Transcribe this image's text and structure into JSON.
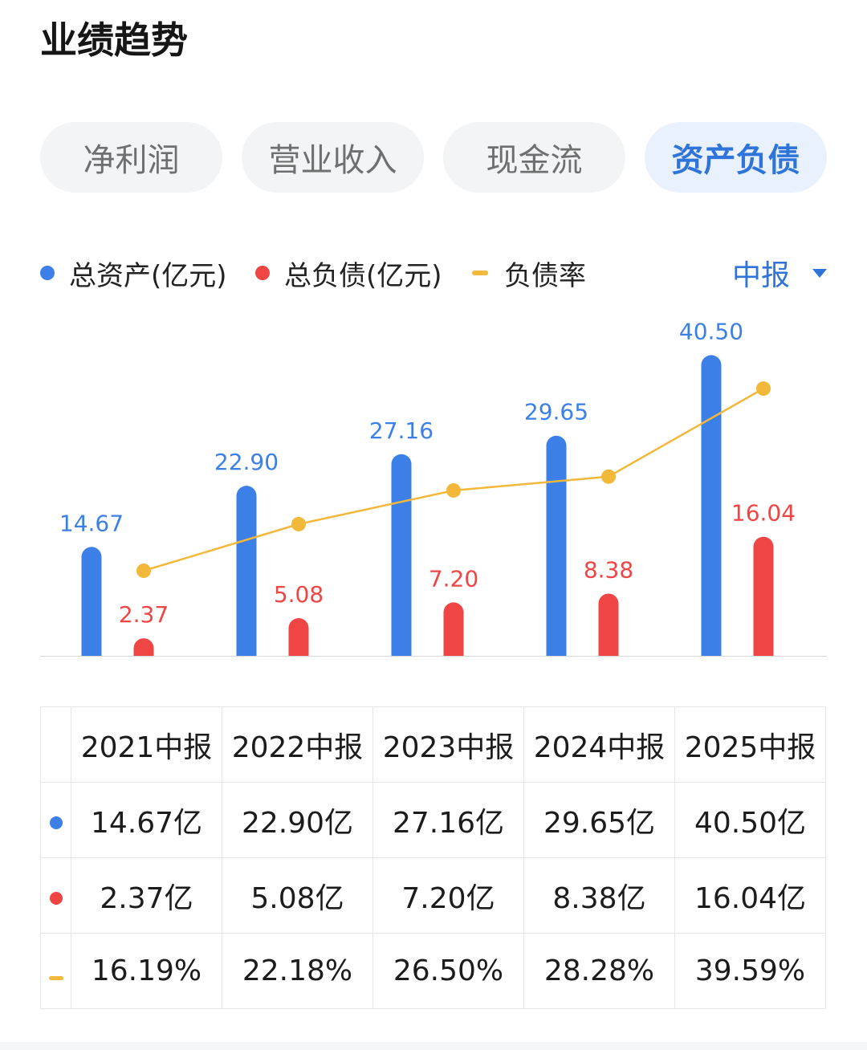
{
  "page_title": "业绩趋势",
  "tabs": [
    {
      "label": "净利润",
      "active": false
    },
    {
      "label": "营业收入",
      "active": false
    },
    {
      "label": "现金流",
      "active": false
    },
    {
      "label": "资产负债",
      "active": true
    }
  ],
  "period_selector": "中报",
  "colors": {
    "assets": "#3c7fe6",
    "liabilities": "#ef4545",
    "ratio": "#f2b83a",
    "accent": "#2f74d8"
  },
  "chart_data": {
    "type": "bar",
    "categories": [
      "2021中报",
      "2022中报",
      "2023中报",
      "2024中报",
      "2025中报"
    ],
    "series": [
      {
        "name": "总资产(亿元)",
        "kind": "bar",
        "values": [
          14.67,
          22.9,
          27.16,
          29.65,
          40.5
        ],
        "labels": [
          "14.67",
          "22.90",
          "27.16",
          "29.65",
          "40.50"
        ]
      },
      {
        "name": "总负债(亿元)",
        "kind": "bar",
        "values": [
          2.37,
          5.08,
          7.2,
          8.38,
          16.04
        ],
        "labels": [
          "2.37",
          "5.08",
          "7.20",
          "8.38",
          "16.04"
        ]
      },
      {
        "name": "负债率",
        "kind": "line",
        "unit": "%",
        "values": [
          16.19,
          22.18,
          26.5,
          28.28,
          39.59
        ]
      }
    ],
    "legend_position": "top-left",
    "grid": false
  },
  "table": {
    "headers": [
      "2021中报",
      "2022中报",
      "2023中报",
      "2024中报",
      "2025中报"
    ],
    "rows": [
      {
        "marker": "assets",
        "cells": [
          "14.67亿",
          "22.90亿",
          "27.16亿",
          "29.65亿",
          "40.50亿"
        ]
      },
      {
        "marker": "liabilities",
        "cells": [
          "2.37亿",
          "5.08亿",
          "7.20亿",
          "8.38亿",
          "16.04亿"
        ]
      },
      {
        "marker": "ratio",
        "cells": [
          "16.19%",
          "22.18%",
          "26.50%",
          "28.28%",
          "39.59%"
        ]
      }
    ]
  }
}
